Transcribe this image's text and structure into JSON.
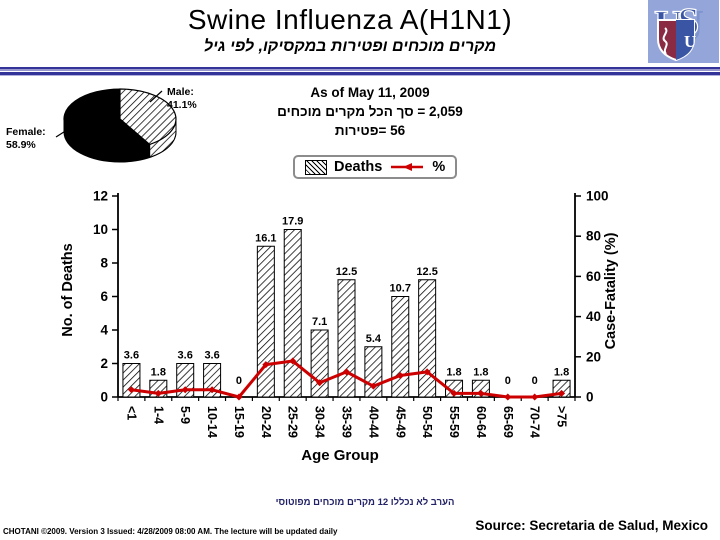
{
  "slide": {
    "title": "Swine Influenza A(H1N1)",
    "subtitle_he": "מקרים מוכחים ופטירות במקסיקו, לפי גיל"
  },
  "summary": {
    "as_of": "As of May 11, 2009",
    "total_cases_he": "2,059 = סך הכל מקרים מוכחים",
    "deaths_he": "56 =פטירות"
  },
  "pie_labels": {
    "male_label": "Male:",
    "male_value": "41.1%",
    "female_label": "Female:",
    "female_value": "58.9%"
  },
  "legend": {
    "deaths_label": "Deaths",
    "pct_label": "%"
  },
  "footnote_he": "הערב לא נכללו 12 מקרים מוכחים מפוטוסי",
  "footer": {
    "credit": "CHOTANI ©2009. Version 3 Issued: 4/28/2009 08:00 AM. The lecture will be updated daily",
    "source": "Source: Secretaria de Salud, Mexico"
  },
  "colors": {
    "line": "#cc0000",
    "rule_navy": "#333399",
    "logo_bg": "#94a6d9",
    "logo_blue": "#3b55a5",
    "logo_maroon": "#8a2b43"
  },
  "chart_data": [
    {
      "type": "pie",
      "slices": [
        {
          "label": "Male",
          "value": 41.1,
          "fill": "hatch"
        },
        {
          "label": "Female",
          "value": 58.9,
          "fill": "solid-black"
        }
      ]
    },
    {
      "type": "bar+line",
      "categories": [
        "<1",
        "1-4",
        "5-9",
        "10-14",
        "15-19",
        "20-24",
        "25-29",
        "30-34",
        "35-39",
        "40-44",
        "45-49",
        "50-54",
        "55-59",
        "60-64",
        "65-69",
        "70-74",
        ">75"
      ],
      "series": [
        {
          "name": "Deaths",
          "chart": "bar",
          "axis": "left",
          "values": [
            2,
            1,
            2,
            2,
            0,
            9,
            10,
            4,
            7,
            3,
            6,
            7,
            1,
            1,
            0,
            0,
            1
          ]
        },
        {
          "name": "%",
          "chart": "line",
          "axis": "right",
          "values": [
            3.6,
            1.8,
            3.6,
            3.6,
            0,
            16.1,
            17.9,
            7.1,
            12.5,
            5.4,
            10.7,
            12.5,
            1.8,
            1.8,
            0,
            0,
            1.8
          ]
        }
      ],
      "point_labels": [
        "3.6",
        "1.8",
        "3.6",
        "3.6",
        "0",
        "16.1",
        "17.9",
        "7.1",
        "12.5",
        "5.4",
        "10.7",
        "12.5",
        "1.8",
        "1.8",
        "0",
        "0",
        "1.8"
      ],
      "xlabel": "Age Group",
      "ylabel_left": "No. of Deaths",
      "ylabel_right": "Case-Fatality (%)",
      "ylim_left": [
        0,
        12
      ],
      "ylim_right": [
        0,
        100
      ],
      "yticks_left": [
        0,
        2,
        4,
        6,
        8,
        10,
        12
      ],
      "yticks_right": [
        0,
        20,
        40,
        60,
        80,
        100
      ],
      "legend": [
        "Deaths",
        "%"
      ],
      "legend_position": "top"
    }
  ]
}
